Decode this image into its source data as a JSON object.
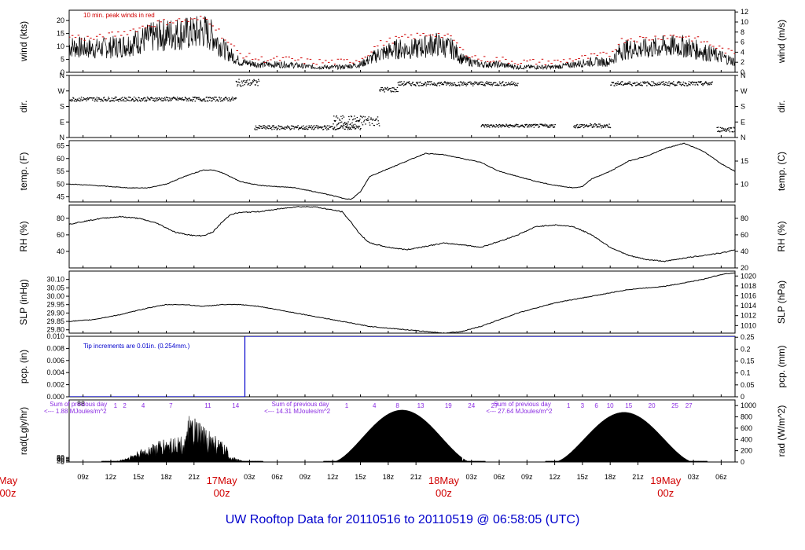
{
  "title": "UW Rooftop Data for 20110516  to  20110519 @ 06:58:05  (UTC)",
  "chart_data": {
    "type": "line",
    "x_axis": {
      "tick_labels": [
        "09z",
        "12z",
        "15z",
        "18z",
        "21z",
        "03z",
        "06z",
        "09z",
        "12z",
        "15z",
        "18z",
        "21z",
        "03z",
        "06z",
        "09z",
        "12z",
        "15z",
        "18z",
        "21z",
        "03z",
        "06z"
      ],
      "tick_hours": [
        9,
        12,
        15,
        18,
        21,
        27,
        30,
        33,
        36,
        39,
        42,
        45,
        51,
        54,
        57,
        60,
        63,
        66,
        69,
        75,
        78
      ],
      "day_labels": [
        {
          "day": "May",
          "hour": "00z",
          "at": 0
        },
        {
          "day": "17May",
          "hour": "00z",
          "at": 24
        },
        {
          "day": "18May",
          "hour": "00z",
          "at": 48
        },
        {
          "day": "19May",
          "hour": "00z",
          "at": 72
        }
      ],
      "range_hours": [
        7.5,
        79.5
      ]
    },
    "panels": [
      {
        "id": "wind",
        "ylabel_left": "wind (kts)",
        "ylabel_right": "wind (m/s)",
        "left_ticks": [
          "0",
          "5",
          "10",
          "15",
          "20"
        ],
        "right_ticks": [
          "0",
          "2",
          "4",
          "6",
          "8",
          "10",
          "12"
        ],
        "ylim": [
          0,
          24
        ],
        "annotation": "10 min. peak winds in red",
        "series": [
          {
            "role": "mean wind",
            "color": "#000000",
            "x": [
              7.5,
              10,
              13,
              15,
              17,
              19,
              21,
              22,
              23,
              24.5,
              26,
              28,
              31,
              34,
              37,
              39,
              41,
              43,
              45,
              47,
              48,
              49,
              50,
              52,
              54,
              56,
              58,
              60,
              62,
              64,
              66,
              67,
              68,
              70,
              72,
              74,
              76,
              78,
              79.5
            ],
            "y": [
              10,
              9,
              10,
              12,
              14,
              15,
              15,
              16,
              14,
              8,
              4,
              3,
              3,
              2,
              2,
              3,
              7,
              9,
              9,
              11,
              10,
              9,
              5,
              3,
              3,
              2,
              2,
              2,
              3,
              4,
              4,
              8,
              9,
              9,
              10,
              10,
              8,
              6,
              4
            ]
          },
          {
            "role": "10 min. peak winds",
            "color": "#d00000",
            "x": [
              7.5,
              10,
              13,
              15,
              17,
              19,
              21,
              22,
              23,
              24.5,
              26,
              28,
              31,
              34,
              37,
              39,
              41,
              43,
              45,
              47,
              48,
              49,
              50,
              52,
              54,
              56,
              58,
              60,
              62,
              64,
              66,
              67,
              68,
              70,
              72,
              74,
              76,
              78,
              79.5
            ],
            "y": [
              14,
              13,
              15,
              17,
              19,
              20,
              20,
              21,
              19,
              12,
              7,
              5,
              5,
              4,
              4,
              5,
              11,
              13,
              14,
              15,
              14,
              13,
              8,
              5,
              5,
              4,
              4,
              4,
              5,
              6,
              7,
              12,
              13,
              13,
              14,
              14,
              12,
              9,
              7
            ]
          }
        ]
      },
      {
        "id": "dir",
        "ylabel_left": "dir.",
        "ylabel_right": "dir.",
        "left_ticks": [
          "N",
          "E",
          "S",
          "W",
          "N"
        ],
        "right_ticks": [
          "N",
          "E",
          "S",
          "W",
          "N"
        ],
        "ylim": [
          0,
          360
        ],
        "series": [
          {
            "role": "wind direction",
            "color": "#000000",
            "segments": [
              {
                "x0": 7.5,
                "x1": 25.5,
                "y": 225,
                "spread": 25
              },
              {
                "x0": 25.5,
                "x1": 28,
                "y": 320,
                "spread": 40
              },
              {
                "x0": 27.5,
                "x1": 39,
                "y": 60,
                "spread": 25
              },
              {
                "x0": 36,
                "x1": 41,
                "y": 100,
                "spread": 60
              },
              {
                "x0": 41,
                "x1": 43,
                "y": 280,
                "spread": 30
              },
              {
                "x0": 43,
                "x1": 56,
                "y": 315,
                "spread": 25
              },
              {
                "x0": 52,
                "x1": 60,
                "y": 70,
                "spread": 20
              },
              {
                "x0": 62,
                "x1": 66,
                "y": 70,
                "spread": 25
              },
              {
                "x0": 66,
                "x1": 77,
                "y": 315,
                "spread": 25
              },
              {
                "x0": 77.5,
                "x1": 79.5,
                "y": 50,
                "spread": 30
              }
            ]
          }
        ]
      },
      {
        "id": "temp",
        "ylabel_left": "temp. (F)",
        "ylabel_right": "temp. (C)",
        "left_ticks": [
          "45",
          "50",
          "55",
          "60",
          "65"
        ],
        "right_ticks": [
          "10",
          "15"
        ],
        "ylim": [
          43,
          67
        ],
        "series": [
          {
            "role": "temperature",
            "color": "#000000",
            "x": [
              7.5,
              10,
              12,
              14,
              16,
              18,
              20,
              22,
              23,
              24,
              26,
              28,
              30,
              32,
              34,
              36,
              37,
              38,
              39,
              40,
              42,
              44,
              46,
              48,
              50,
              52,
              54,
              56,
              58,
              60,
              62,
              63,
              64,
              66,
              68,
              70,
              72,
              74,
              76,
              78,
              79.5
            ],
            "y": [
              50,
              49.5,
              49,
              48.5,
              48.5,
              50,
              53,
              55.5,
              55.5,
              54.5,
              51,
              49.5,
              49,
              48.5,
              47,
              45.5,
              44.5,
              44,
              47,
              53,
              56,
              59,
              62,
              61.5,
              60,
              58.5,
              55,
              53,
              51,
              49.5,
              48.5,
              49,
              52,
              55,
              59,
              61,
              64,
              66,
              63,
              58,
              55
            ]
          }
        ]
      },
      {
        "id": "rh",
        "ylabel_left": "RH (%)",
        "ylabel_right": "RH (%)",
        "left_ticks": [
          "40",
          "60",
          "80"
        ],
        "right_ticks": [
          "20",
          "40",
          "60",
          "80"
        ],
        "ylim": [
          20,
          96
        ],
        "series": [
          {
            "role": "relative humidity",
            "color": "#000000",
            "x": [
              7.5,
              9,
              11,
              13,
              15,
              17,
              19,
              21,
              22,
              23,
              24,
              25,
              26,
              28,
              30,
              32,
              34,
              35,
              37,
              38,
              39,
              40,
              42,
              44,
              46,
              48,
              50,
              52,
              54,
              56,
              58,
              60,
              62,
              64,
              66,
              68,
              70,
              72,
              74,
              76,
              78,
              79.5
            ],
            "y": [
              73,
              76,
              80,
              82,
              80,
              74,
              63,
              59,
              59,
              63,
              75,
              85,
              87,
              88,
              91,
              94,
              94,
              92,
              88,
              75,
              60,
              50,
              45,
              42,
              46,
              50,
              48,
              45,
              52,
              60,
              70,
              72,
              70,
              60,
              45,
              35,
              30,
              28,
              32,
              35,
              38,
              42
            ]
          }
        ]
      },
      {
        "id": "slp",
        "ylabel_left": "SLP (inHg)",
        "ylabel_right": "SLP (hPa)",
        "left_ticks": [
          "29.80",
          "29.85",
          "29.90",
          "29.95",
          "30.00",
          "30.05",
          "30.10"
        ],
        "right_ticks": [
          "1010",
          "1012",
          "1014",
          "1016",
          "1018",
          "1020"
        ],
        "ylim": [
          29.78,
          30.15
        ],
        "series": [
          {
            "role": "sea level pressure",
            "color": "#000000",
            "x": [
              7.5,
              10,
              13,
              16,
              18,
              20,
              22,
              24,
              26,
              28,
              30,
              32,
              34,
              36,
              38,
              40,
              42,
              44,
              46,
              48,
              50,
              52,
              54,
              56,
              58,
              60,
              62,
              64,
              66,
              68,
              70,
              72,
              74,
              76,
              78,
              79.5
            ],
            "y": [
              29.85,
              29.86,
              29.89,
              29.93,
              29.95,
              29.95,
              29.94,
              29.95,
              29.95,
              29.94,
              29.92,
              29.9,
              29.88,
              29.86,
              29.84,
              29.82,
              29.81,
              29.8,
              29.79,
              29.78,
              29.79,
              29.82,
              29.86,
              29.9,
              29.93,
              29.96,
              29.98,
              30.0,
              30.02,
              30.04,
              30.05,
              30.06,
              30.08,
              30.1,
              30.13,
              30.14
            ]
          }
        ]
      },
      {
        "id": "pcp",
        "ylabel_left": "pcp. (in)",
        "ylabel_right": "pcp. (mm)",
        "left_ticks": [
          "0.000",
          "0.002",
          "0.004",
          "0.006",
          "0.008",
          "0.010"
        ],
        "right_ticks": [
          "0",
          "0.05",
          "0.1",
          "0.15",
          "0.2",
          "0.25"
        ],
        "ylim": [
          0,
          0.01
        ],
        "annotation": "Tip increments are 0.01in. (0.254mm.)",
        "series": [
          {
            "role": "cumulative precipitation",
            "color": "#0000cc",
            "x": [
              7.5,
              26.5,
              26.5,
              79.5
            ],
            "y": [
              0,
              0,
              0.01,
              0.01
            ]
          }
        ]
      },
      {
        "id": "rad",
        "ylabel_left": "rad(Lgly/hr)",
        "ylabel_right": "rad (W/m^2)",
        "left_ticks": [
          "0",
          "20",
          "40",
          "60",
          "80"
        ],
        "top_left_tick": "88",
        "right_ticks": [
          "0",
          "200",
          "400",
          "600",
          "800",
          "1000"
        ],
        "ylim": [
          0,
          1100
        ],
        "day_totals": [
          {
            "line1": "Sum of previous day",
            "line2": "<--- 1.88 MJoules/m^2",
            "hour": 8
          },
          {
            "line1": "Sum of previous day",
            "line2": "<--- 14.31 MJoules/m^2",
            "hour": 32
          },
          {
            "line1": "Sum of previous day",
            "line2": "<--- 27.64 MJoules/m^2",
            "hour": 56
          }
        ],
        "hour_labels": [
          {
            "label": "1",
            "hour": 12.5
          },
          {
            "label": "2",
            "hour": 13.5
          },
          {
            "label": "4",
            "hour": 15.5
          },
          {
            "label": "7",
            "hour": 18.5
          },
          {
            "label": "11",
            "hour": 22.5
          },
          {
            "label": "14",
            "hour": 25.5
          },
          {
            "label": "1",
            "hour": 37.5
          },
          {
            "label": "4",
            "hour": 40.5
          },
          {
            "label": "8",
            "hour": 43
          },
          {
            "label": "13",
            "hour": 45.5
          },
          {
            "label": "19",
            "hour": 48.5
          },
          {
            "label": "24",
            "hour": 51
          },
          {
            "label": "27",
            "hour": 53.5
          },
          {
            "label": "1",
            "hour": 61.5
          },
          {
            "label": "3",
            "hour": 63
          },
          {
            "label": "6",
            "hour": 64.5
          },
          {
            "label": "10",
            "hour": 66
          },
          {
            "label": "15",
            "hour": 68
          },
          {
            "label": "20",
            "hour": 70.5
          },
          {
            "label": "25",
            "hour": 73
          },
          {
            "label": "27",
            "hour": 74.5
          }
        ],
        "series": [
          {
            "role": "solar radiation",
            "color": "#000000",
            "days": [
              {
                "start": 12,
                "end": 27,
                "peak": 850,
                "cloudy": true
              },
              {
                "start": 36,
                "end": 51,
                "peak": 920,
                "cloudy": false
              },
              {
                "start": 60,
                "end": 75,
                "peak": 880,
                "cloudy": false
              }
            ]
          }
        ]
      }
    ]
  }
}
